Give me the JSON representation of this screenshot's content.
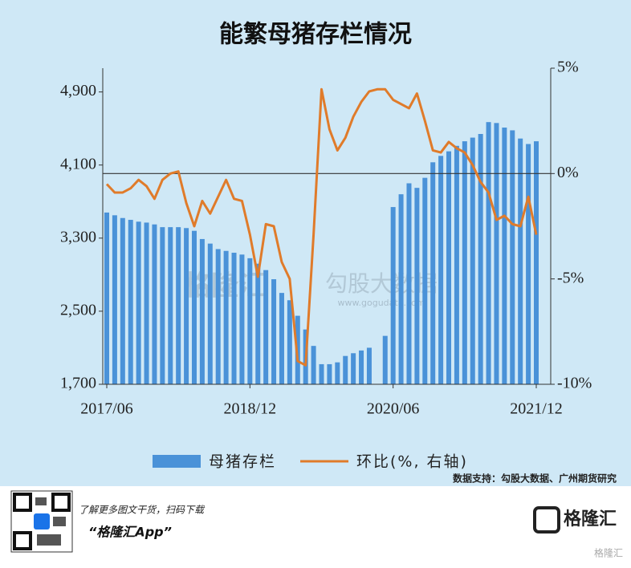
{
  "chart_data": {
    "type": "combo",
    "title": "能繁母猪存栏情况",
    "categories": [
      "2017/06",
      null,
      null,
      null,
      null,
      null,
      null,
      null,
      null,
      null,
      null,
      null,
      null,
      null,
      null,
      null,
      null,
      null,
      "2018/12",
      null,
      null,
      null,
      null,
      null,
      null,
      null,
      null,
      null,
      null,
      null,
      null,
      null,
      null,
      null,
      null,
      null,
      "2020/06",
      null,
      null,
      null,
      null,
      null,
      null,
      null,
      null,
      null,
      null,
      null,
      null,
      null,
      null,
      null,
      null,
      null,
      "2021/12"
    ],
    "series": [
      {
        "name": "母猪存栏",
        "type": "bar",
        "color": "#4a92d8",
        "values": [
          3580,
          3550,
          3520,
          3500,
          3480,
          3470,
          3450,
          3420,
          3420,
          3420,
          3410,
          3380,
          3290,
          3240,
          3180,
          3160,
          3140,
          3120,
          3080,
          3020,
          2950,
          2850,
          2700,
          2620,
          2450,
          2300,
          2120,
          1920,
          1920,
          1940,
          2010,
          2040,
          2070,
          2100,
          null,
          2230,
          3640,
          3780,
          3900,
          3850,
          3960,
          4130,
          4200,
          4250,
          4310,
          4360,
          4400,
          4440,
          4570,
          4560,
          4510,
          4480,
          4390,
          4330,
          4360
        ]
      },
      {
        "name": "环比(%, 右轴)",
        "type": "line",
        "color": "#e07b2a",
        "axis": "y2",
        "values": [
          -0.5,
          -0.9,
          -0.9,
          -0.7,
          -0.3,
          -0.6,
          -1.2,
          -0.3,
          0,
          0.1,
          -1.4,
          -2.5,
          -1.3,
          -1.9,
          -1.1,
          -0.3,
          -1.2,
          -1.3,
          -2.9,
          -4.9,
          -2.4,
          -2.5,
          -4.2,
          -5.0,
          -8.9,
          -9.1,
          -2.9,
          4.0,
          2.1,
          1.1,
          1.7,
          2.7,
          3.4,
          3.9,
          4.0,
          4.0,
          3.5,
          3.3,
          3.1,
          3.8,
          2.5,
          1.1,
          1.0,
          1.5,
          1.2,
          1.0,
          0.4,
          -0.4,
          -0.9,
          -2.2,
          -2.0,
          -2.4,
          -2.5,
          -1.1,
          -2.9
        ]
      }
    ],
    "ylim": [
      1700,
      5160
    ],
    "yticks": [
      {
        "value": 1700,
        "label": "1,700"
      },
      {
        "value": 2500,
        "label": "2,500"
      },
      {
        "value": 3300,
        "label": "3,300"
      },
      {
        "value": 4100,
        "label": "4,100"
      },
      {
        "value": 4900,
        "label": "4,900"
      }
    ],
    "y2lim": [
      -10,
      5
    ],
    "y2ticks": [
      {
        "value": -10,
        "label": "-10%"
      },
      {
        "value": -5,
        "label": "-5%"
      },
      {
        "value": 0,
        "label": "0%"
      },
      {
        "value": 5,
        "label": "5%"
      }
    ],
    "legend": "bottom",
    "source": "数据支持：勾股大数据、广州期货研究",
    "watermarks": [
      "格隆汇",
      "勾股大数据",
      "www.gogudata.com"
    ]
  },
  "footer": {
    "promo": "了解更多图文干货，扫码下载",
    "app": "“格隆汇App”",
    "logo": "格隆汇",
    "corner": "格隆汇"
  }
}
